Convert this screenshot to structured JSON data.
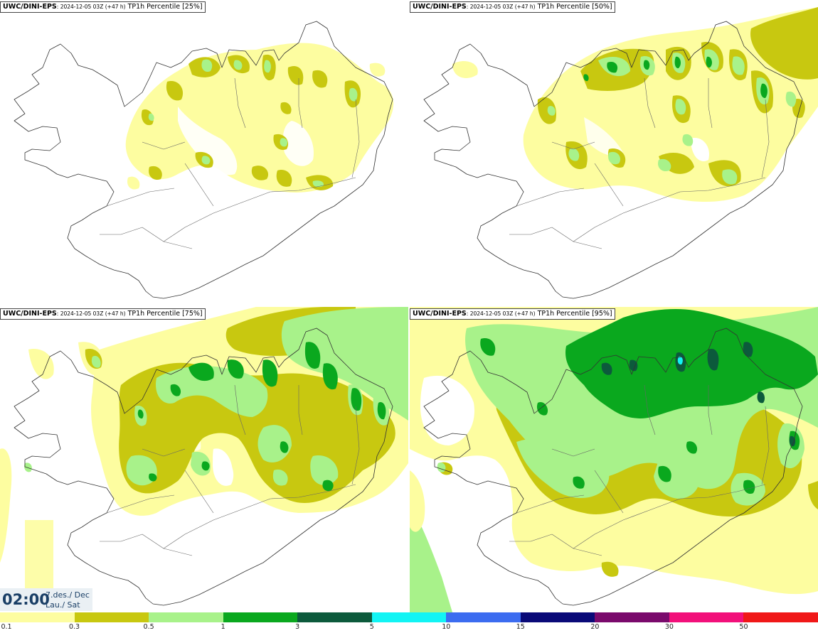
{
  "panels": [
    {
      "model": "UWC/DINI-EPS",
      "date": ": 2024-12-05 03Z (+47 h)",
      "field": " TP1h Percentile [25%]"
    },
    {
      "model": "UWC/DINI-EPS",
      "date": ": 2024-12-05 03Z (+47 h)",
      "field": " TP1h Percentile [50%]"
    },
    {
      "model": "UWC/DINI-EPS",
      "date": ": 2024-12-05 03Z (+47 h)",
      "field": " TP1h Percentile [75%]"
    },
    {
      "model": "UWC/DINI-EPS",
      "date": ": 2024-12-05 03Z (+47 h)",
      "field": " TP1h Percentile [95%]"
    }
  ],
  "time": {
    "clock": "02:00",
    "date_line": "7.des./ Dec",
    "day_line": "Lau./ Sat"
  },
  "legend": {
    "labels": [
      "0.1",
      "0.3",
      "0.5",
      "1",
      "3",
      "5",
      "10",
      "15",
      "20",
      "30",
      "50"
    ],
    "colors": [
      "#fdfda0",
      "#c8c810",
      "#a8f28a",
      "#0aa81e",
      "#0c5a3c",
      "#12f4f4",
      "#3c6cf0",
      "#0a0a78",
      "#7a0a6c",
      "#f2107a",
      "#f01818"
    ]
  }
}
